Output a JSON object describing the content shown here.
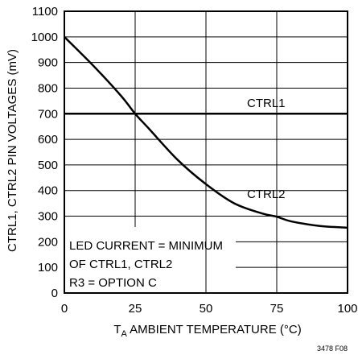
{
  "chart_data": {
    "type": "line",
    "xlabel_sym": "T",
    "xlabel_sub": "A",
    "xlabel_rest": " AMBIENT TEMPERATURE (°C)",
    "ylabel": "CTRL1, CTRL2 PIN VOLTAGES (mV)",
    "xlim": [
      0,
      100
    ],
    "ylim": [
      0,
      1100
    ],
    "x_ticks": [
      0,
      25,
      50,
      75,
      100
    ],
    "y_ticks": [
      0,
      100,
      200,
      300,
      400,
      500,
      600,
      700,
      800,
      900,
      1000,
      1100
    ],
    "grid": true,
    "series": [
      {
        "name": "CTRL1",
        "x": [
          0,
          100
        ],
        "y": [
          700,
          700
        ]
      },
      {
        "name": "CTRL2",
        "x": [
          0,
          10,
          20,
          25,
          30,
          40,
          50,
          60,
          70,
          75,
          80,
          90,
          100
        ],
        "y": [
          1000,
          890,
          770,
          700,
          640,
          520,
          425,
          350,
          310,
          298,
          280,
          262,
          255
        ]
      }
    ],
    "annotation_lines": [
      "LED CURRENT = MINIMUM",
      "OF CTRL1, CTRL2",
      "R3 = OPTION C"
    ],
    "figure_id": "3478 F08"
  }
}
